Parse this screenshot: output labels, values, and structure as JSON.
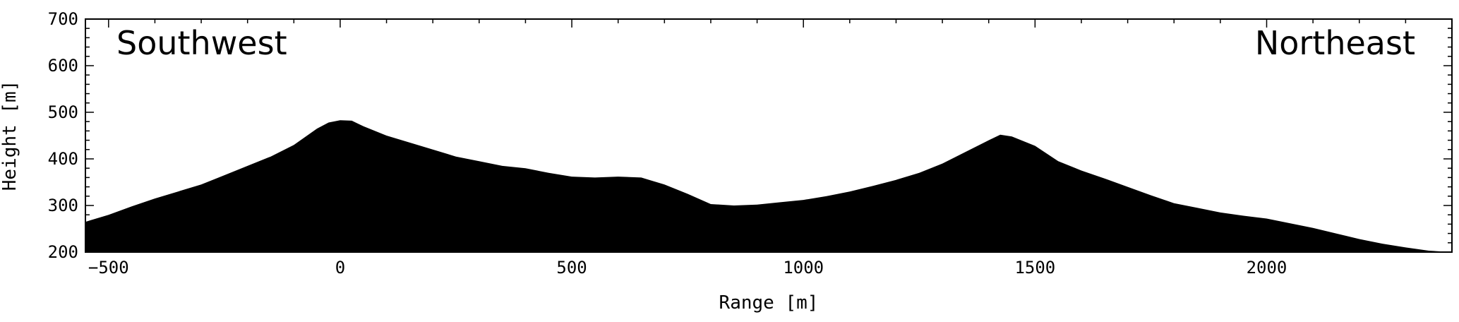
{
  "chart_data": {
    "type": "area",
    "xlabel": "Range [m]",
    "ylabel": "Height [m]",
    "xlim": [
      -550,
      2400
    ],
    "ylim": [
      200,
      700
    ],
    "xticks": [
      -500,
      0,
      500,
      1000,
      1500,
      2000
    ],
    "xtick_labels": [
      "−500",
      "0",
      "500",
      "1000",
      "1500",
      "2000"
    ],
    "yticks": [
      200,
      300,
      400,
      500,
      600,
      700
    ],
    "ytick_labels": [
      "200",
      "300",
      "400",
      "500",
      "600",
      "700"
    ],
    "grid": false,
    "fill_color": "#000000",
    "annotations": [
      {
        "text": "Southwest",
        "position": "top-left"
      },
      {
        "text": "Northeast",
        "position": "top-right"
      }
    ],
    "x": [
      -550,
      -500,
      -450,
      -400,
      -350,
      -300,
      -250,
      -200,
      -150,
      -100,
      -50,
      -25,
      0,
      25,
      50,
      100,
      150,
      200,
      250,
      300,
      350,
      400,
      450,
      500,
      550,
      600,
      650,
      700,
      750,
      800,
      850,
      900,
      950,
      1000,
      1050,
      1100,
      1150,
      1200,
      1250,
      1300,
      1350,
      1400,
      1425,
      1450,
      1500,
      1550,
      1600,
      1650,
      1700,
      1750,
      1800,
      1850,
      1900,
      1950,
      2000,
      2050,
      2100,
      2150,
      2200,
      2250,
      2300,
      2350,
      2400
    ],
    "y": [
      265,
      280,
      298,
      315,
      330,
      345,
      365,
      385,
      405,
      430,
      465,
      478,
      483,
      482,
      470,
      450,
      435,
      420,
      405,
      395,
      385,
      380,
      370,
      362,
      360,
      362,
      360,
      345,
      325,
      303,
      300,
      302,
      307,
      312,
      320,
      330,
      342,
      355,
      370,
      390,
      415,
      440,
      452,
      448,
      428,
      395,
      375,
      358,
      340,
      322,
      305,
      295,
      285,
      278,
      272,
      262,
      252,
      240,
      228,
      218,
      210,
      203,
      200
    ]
  }
}
